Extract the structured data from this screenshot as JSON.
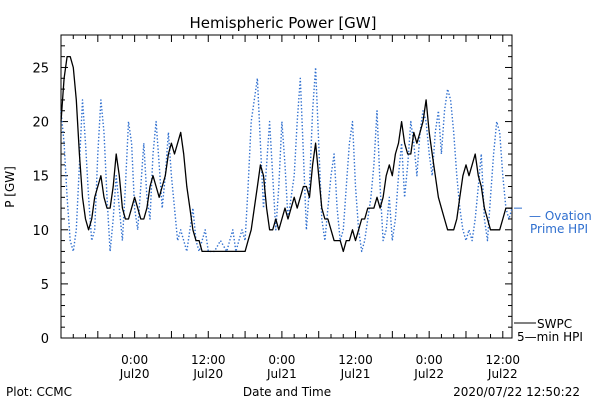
{
  "chart_data": {
    "type": "line",
    "title": "Hemispheric Power [GW]",
    "ylabel": "P [GW]",
    "xlabel": "Date and Time",
    "ylim": [
      0,
      28
    ],
    "yticks": [
      0,
      5,
      10,
      15,
      20,
      25
    ],
    "grid": false,
    "legend_placement": "right",
    "x_unit": "hours since 2020/07/19 12:00",
    "xlim": [
      0,
      73.5
    ],
    "xticks": [
      {
        "x": 12,
        "line1": "0:00",
        "line2": "Jul20"
      },
      {
        "x": 24,
        "line1": "12:00",
        "line2": "Jul20"
      },
      {
        "x": 36,
        "line1": "0:00",
        "line2": "Jul21"
      },
      {
        "x": 48,
        "line1": "12:00",
        "line2": "Jul21"
      },
      {
        "x": 60,
        "line1": "0:00",
        "line2": "Jul22"
      },
      {
        "x": 72,
        "line1": "12:00",
        "line2": "Jul22"
      }
    ],
    "series": [
      {
        "name": "Ovation Prime HPI",
        "label_lines": [
          "— Ovation",
          "Prime HPI"
        ],
        "color": "#2f6fcf",
        "style": "dotted",
        "points": [
          [
            0,
            21
          ],
          [
            0.5,
            18
          ],
          [
            1,
            13
          ],
          [
            1.5,
            9
          ],
          [
            2,
            8
          ],
          [
            2.5,
            10
          ],
          [
            3,
            16
          ],
          [
            3.5,
            22
          ],
          [
            4,
            18
          ],
          [
            4.5,
            13
          ],
          [
            5,
            9
          ],
          [
            5.5,
            10
          ],
          [
            6,
            17
          ],
          [
            6.5,
            22
          ],
          [
            7,
            19
          ],
          [
            7.5,
            13
          ],
          [
            8,
            8
          ],
          [
            8.5,
            11
          ],
          [
            9,
            15
          ],
          [
            9.5,
            12
          ],
          [
            10,
            9
          ],
          [
            10.5,
            14
          ],
          [
            11,
            20
          ],
          [
            11.5,
            18
          ],
          [
            12,
            12
          ],
          [
            12.5,
            10
          ],
          [
            13,
            14
          ],
          [
            13.5,
            18
          ],
          [
            14,
            13
          ],
          [
            14.5,
            11
          ],
          [
            15,
            17
          ],
          [
            15.5,
            20
          ],
          [
            16,
            16
          ],
          [
            16.5,
            12
          ],
          [
            17,
            15
          ],
          [
            17.5,
            19
          ],
          [
            18,
            15
          ],
          [
            18.5,
            12
          ],
          [
            19,
            9
          ],
          [
            19.5,
            10
          ],
          [
            20,
            9
          ],
          [
            20.5,
            8
          ],
          [
            21,
            10
          ],
          [
            21.5,
            12
          ],
          [
            22,
            9
          ],
          [
            22.5,
            8
          ],
          [
            23,
            9
          ],
          [
            23.5,
            10
          ],
          [
            24,
            8
          ],
          [
            25,
            8
          ],
          [
            26,
            9
          ],
          [
            27,
            8
          ],
          [
            28,
            10
          ],
          [
            28.5,
            8
          ],
          [
            29,
            9
          ],
          [
            29.5,
            10
          ],
          [
            30,
            9
          ],
          [
            30.5,
            14
          ],
          [
            31,
            20
          ],
          [
            31.5,
            22
          ],
          [
            32,
            24
          ],
          [
            32.5,
            18
          ],
          [
            33,
            12
          ],
          [
            33.5,
            16
          ],
          [
            34,
            20
          ],
          [
            34.5,
            15
          ],
          [
            35,
            10
          ],
          [
            35.5,
            14
          ],
          [
            36,
            20
          ],
          [
            36.5,
            16
          ],
          [
            37,
            11
          ],
          [
            37.5,
            13
          ],
          [
            38,
            15
          ],
          [
            38.5,
            20
          ],
          [
            39,
            24
          ],
          [
            39.5,
            17
          ],
          [
            40,
            10
          ],
          [
            40.5,
            14
          ],
          [
            41,
            21
          ],
          [
            41.5,
            25
          ],
          [
            42,
            18
          ],
          [
            42.5,
            11
          ],
          [
            43,
            9
          ],
          [
            43.5,
            12
          ],
          [
            44,
            15
          ],
          [
            44.5,
            17
          ],
          [
            45,
            12
          ],
          [
            45.5,
            9
          ],
          [
            46,
            10
          ],
          [
            46.5,
            14
          ],
          [
            47,
            18
          ],
          [
            47.5,
            20
          ],
          [
            48,
            14
          ],
          [
            48.5,
            10
          ],
          [
            49,
            8
          ],
          [
            49.5,
            9
          ],
          [
            50,
            11
          ],
          [
            50.5,
            13
          ],
          [
            51,
            16
          ],
          [
            51.5,
            21
          ],
          [
            52,
            14
          ],
          [
            52.5,
            9
          ],
          [
            53,
            10
          ],
          [
            53.5,
            13
          ],
          [
            54,
            9
          ],
          [
            54.5,
            11
          ],
          [
            55,
            15
          ],
          [
            55.5,
            18
          ],
          [
            56,
            13
          ],
          [
            56.5,
            16
          ],
          [
            57,
            20
          ],
          [
            57.5,
            18
          ],
          [
            58,
            15
          ],
          [
            58.5,
            19
          ],
          [
            59,
            21
          ],
          [
            59.5,
            20
          ],
          [
            60,
            17
          ],
          [
            60.5,
            15
          ],
          [
            61,
            19
          ],
          [
            61.5,
            21
          ],
          [
            62,
            17
          ],
          [
            62.5,
            21
          ],
          [
            63,
            23
          ],
          [
            63.5,
            22
          ],
          [
            64,
            19
          ],
          [
            64.5,
            15
          ],
          [
            65,
            12
          ],
          [
            65.5,
            10
          ],
          [
            66,
            9
          ],
          [
            66.5,
            10
          ],
          [
            67,
            9
          ],
          [
            67.5,
            11
          ],
          [
            68,
            14
          ],
          [
            68.5,
            17
          ],
          [
            69,
            11
          ],
          [
            69.5,
            9
          ],
          [
            70,
            13
          ],
          [
            70.5,
            17
          ],
          [
            71,
            20
          ],
          [
            71.5,
            19
          ],
          [
            72,
            15
          ],
          [
            72.5,
            12
          ],
          [
            73,
            11
          ],
          [
            73.5,
            12
          ]
        ]
      },
      {
        "name": "SWPC 5-min HPI",
        "label_lines": [
          "SWPC",
          "5—min HPI"
        ],
        "color": "#000000",
        "style": "solid",
        "points": [
          [
            0,
            20
          ],
          [
            0.5,
            24
          ],
          [
            1,
            26
          ],
          [
            1.5,
            26
          ],
          [
            2,
            25
          ],
          [
            2.5,
            22
          ],
          [
            3,
            17
          ],
          [
            3.5,
            13
          ],
          [
            4,
            11
          ],
          [
            4.5,
            10
          ],
          [
            5,
            11
          ],
          [
            5.5,
            13
          ],
          [
            6,
            14
          ],
          [
            6.5,
            15
          ],
          [
            7,
            13
          ],
          [
            7.5,
            12
          ],
          [
            8,
            12
          ],
          [
            8.5,
            14
          ],
          [
            9,
            17
          ],
          [
            9.5,
            15
          ],
          [
            10,
            12
          ],
          [
            10.5,
            11
          ],
          [
            11,
            11
          ],
          [
            11.5,
            12
          ],
          [
            12,
            13
          ],
          [
            12.5,
            12
          ],
          [
            13,
            11
          ],
          [
            13.5,
            11
          ],
          [
            14,
            12
          ],
          [
            14.5,
            14
          ],
          [
            15,
            15
          ],
          [
            15.5,
            14
          ],
          [
            16,
            13
          ],
          [
            16.5,
            14
          ],
          [
            17,
            15
          ],
          [
            17.5,
            17
          ],
          [
            18,
            18
          ],
          [
            18.5,
            17
          ],
          [
            19,
            18
          ],
          [
            19.5,
            19
          ],
          [
            20,
            17
          ],
          [
            20.5,
            14
          ],
          [
            21,
            12
          ],
          [
            21.5,
            10
          ],
          [
            22,
            9
          ],
          [
            22.5,
            9
          ],
          [
            23,
            8
          ],
          [
            24,
            8
          ],
          [
            25,
            8
          ],
          [
            26,
            8
          ],
          [
            27,
            8
          ],
          [
            28,
            8
          ],
          [
            29,
            8
          ],
          [
            30,
            8
          ],
          [
            30.5,
            9
          ],
          [
            31,
            10
          ],
          [
            31.5,
            12
          ],
          [
            32,
            14
          ],
          [
            32.5,
            16
          ],
          [
            33,
            15
          ],
          [
            33.5,
            12
          ],
          [
            34,
            10
          ],
          [
            34.5,
            10
          ],
          [
            35,
            11
          ],
          [
            35.5,
            10
          ],
          [
            36,
            11
          ],
          [
            36.5,
            12
          ],
          [
            37,
            11
          ],
          [
            37.5,
            12
          ],
          [
            38,
            13
          ],
          [
            38.5,
            12
          ],
          [
            39,
            13
          ],
          [
            39.5,
            14
          ],
          [
            40,
            14
          ],
          [
            40.5,
            13
          ],
          [
            41,
            16
          ],
          [
            41.5,
            18
          ],
          [
            42,
            15
          ],
          [
            42.5,
            12
          ],
          [
            43,
            11
          ],
          [
            43.5,
            11
          ],
          [
            44,
            10
          ],
          [
            44.5,
            9
          ],
          [
            45,
            9
          ],
          [
            45.5,
            9
          ],
          [
            46,
            8
          ],
          [
            46.5,
            9
          ],
          [
            47,
            9
          ],
          [
            47.5,
            10
          ],
          [
            48,
            9
          ],
          [
            48.5,
            10
          ],
          [
            49,
            11
          ],
          [
            49.5,
            11
          ],
          [
            50,
            12
          ],
          [
            50.5,
            12
          ],
          [
            51,
            12
          ],
          [
            51.5,
            13
          ],
          [
            52,
            12
          ],
          [
            52.5,
            13
          ],
          [
            53,
            15
          ],
          [
            53.5,
            16
          ],
          [
            54,
            15
          ],
          [
            54.5,
            17
          ],
          [
            55,
            18
          ],
          [
            55.5,
            20
          ],
          [
            56,
            18
          ],
          [
            56.5,
            17
          ],
          [
            57,
            17
          ],
          [
            57.5,
            19
          ],
          [
            58,
            18
          ],
          [
            58.5,
            19
          ],
          [
            59,
            20
          ],
          [
            59.5,
            22
          ],
          [
            60,
            19
          ],
          [
            60.5,
            17
          ],
          [
            61,
            15
          ],
          [
            61.5,
            13
          ],
          [
            62,
            12
          ],
          [
            62.5,
            11
          ],
          [
            63,
            10
          ],
          [
            63.5,
            10
          ],
          [
            64,
            10
          ],
          [
            64.5,
            11
          ],
          [
            65,
            13
          ],
          [
            65.5,
            15
          ],
          [
            66,
            16
          ],
          [
            66.5,
            15
          ],
          [
            67,
            16
          ],
          [
            67.5,
            17
          ],
          [
            68,
            15
          ],
          [
            68.5,
            14
          ],
          [
            69,
            12
          ],
          [
            69.5,
            11
          ],
          [
            70,
            10
          ],
          [
            70.5,
            10
          ],
          [
            71,
            10
          ],
          [
            71.5,
            10
          ],
          [
            72,
            11
          ],
          [
            72.5,
            12
          ],
          [
            73,
            12
          ],
          [
            73.5,
            12
          ]
        ]
      }
    ]
  },
  "footer": {
    "left": "Plot: CCMC",
    "center": "Date and Time",
    "right": "2020/07/22 12:50:22"
  },
  "colors": {
    "axis": "#000000",
    "ovation": "#2f6fcf",
    "swpc": "#000000"
  }
}
